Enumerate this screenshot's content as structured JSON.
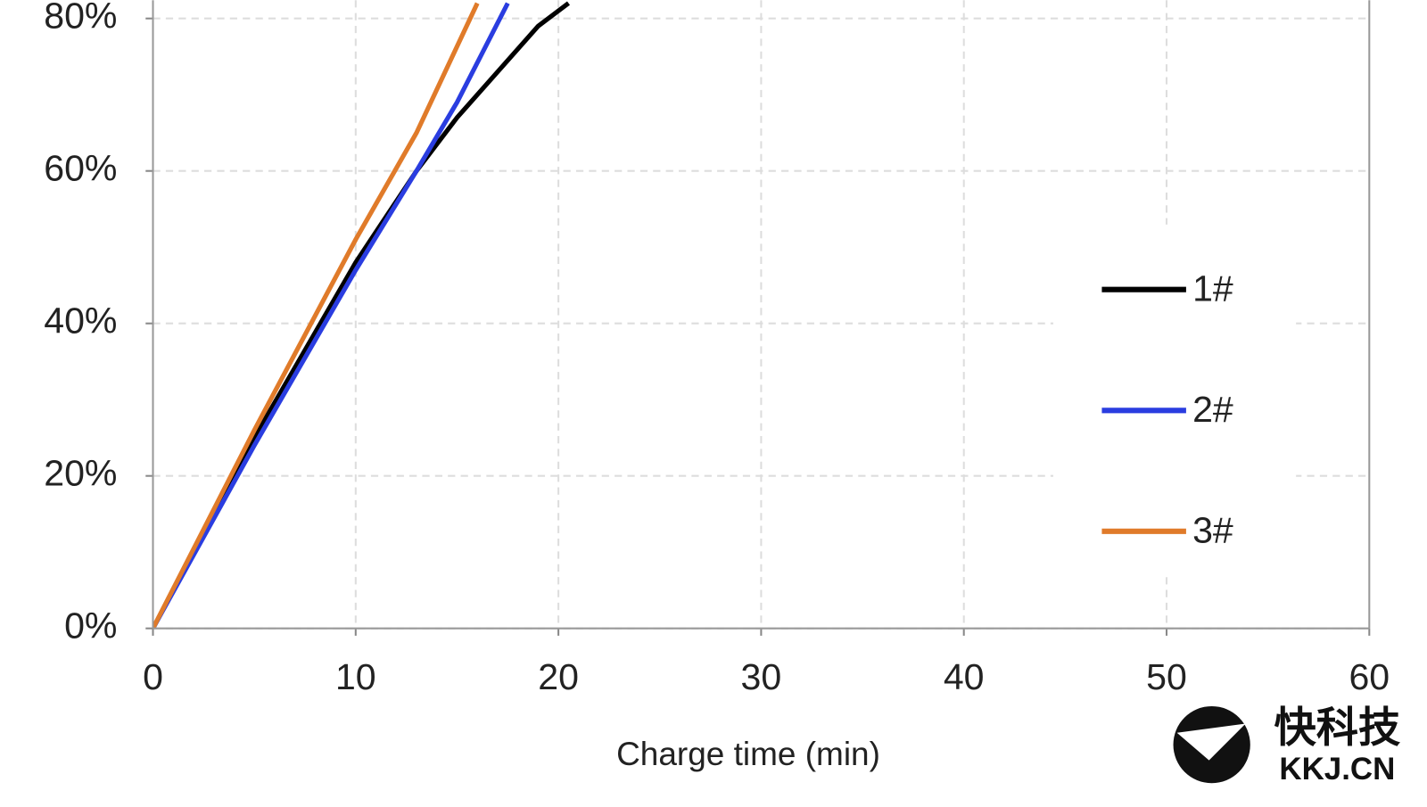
{
  "chart_data": {
    "type": "line",
    "x_label": "Charge time (min)",
    "xlim": [
      0,
      60
    ],
    "xticks": [
      0,
      10,
      20,
      30,
      40,
      50,
      60
    ],
    "ylim": [
      0,
      82.4
    ],
    "yticks": [
      {
        "value": 0,
        "label": "0%"
      },
      {
        "value": 20,
        "label": "20%"
      },
      {
        "value": 40,
        "label": "40%"
      },
      {
        "value": 60,
        "label": "60%"
      },
      {
        "value": 80,
        "label": "80%"
      }
    ],
    "grid": true,
    "legend": "right",
    "series": [
      {
        "name": "1#",
        "color": "#000000",
        "x": [
          0,
          5,
          10,
          13,
          15,
          17,
          19,
          20.5
        ],
        "values": [
          0,
          25,
          48,
          60,
          67,
          73,
          79,
          82
        ]
      },
      {
        "name": "2#",
        "color": "#2a3de0",
        "x": [
          0,
          5,
          10,
          13,
          15,
          17.5
        ],
        "values": [
          0,
          24,
          47,
          60,
          69,
          82
        ]
      },
      {
        "name": "3#",
        "color": "#e07b2a",
        "x": [
          0,
          5,
          10,
          13,
          16
        ],
        "values": [
          0,
          26,
          51,
          65,
          82
        ]
      }
    ]
  },
  "watermark": {
    "title": "快科技",
    "subtitle": "KKJ.CN"
  }
}
